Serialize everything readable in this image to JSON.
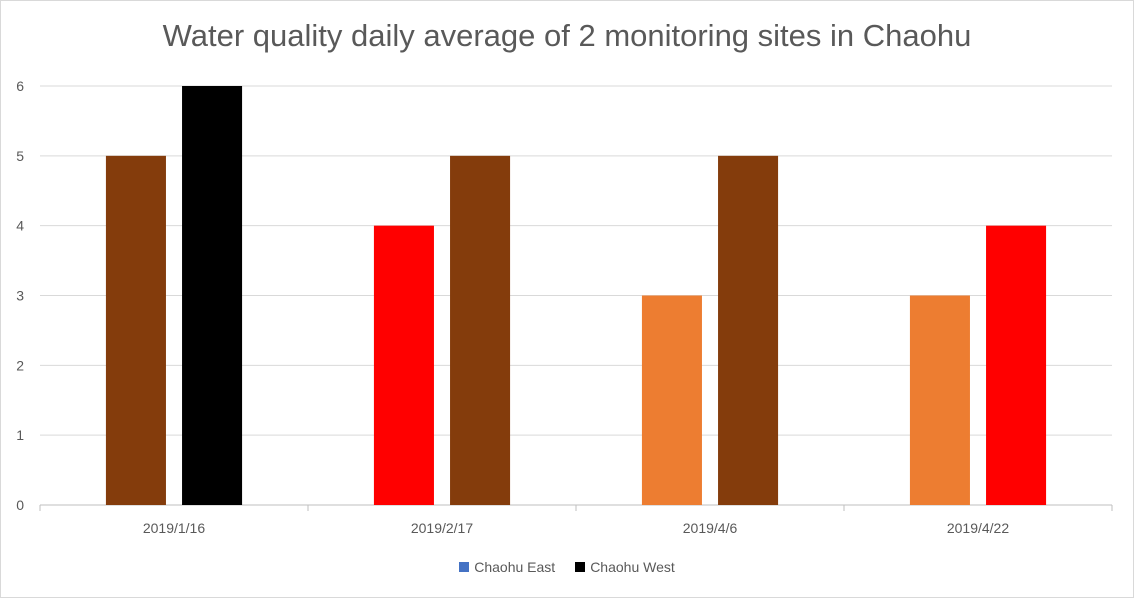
{
  "chart_data": {
    "type": "bar",
    "title": "Water quality daily average of 2 monitoring sites in Chaohu",
    "xlabel": "",
    "ylabel": "",
    "categories": [
      "2019/1/16",
      "2019/2/17",
      "2019/4/6",
      "2019/4/22"
    ],
    "ylim": [
      0,
      6
    ],
    "yticks": [
      "0",
      "1",
      "2",
      "3",
      "4",
      "5",
      "6"
    ],
    "grid": true,
    "legend_position": "bottom",
    "series": [
      {
        "name": "Chaohu East",
        "legend_color": "#4472c4",
        "values": [
          5,
          4,
          3,
          3
        ],
        "bar_colors": [
          "#843c0c",
          "#ff0000",
          "#ed7d31",
          "#ed7d31"
        ]
      },
      {
        "name": "Chaohu West",
        "legend_color": "#000000",
        "values": [
          6,
          5,
          5,
          4
        ],
        "bar_colors": [
          "#000000",
          "#843c0c",
          "#843c0c",
          "#ff0000"
        ]
      }
    ]
  }
}
